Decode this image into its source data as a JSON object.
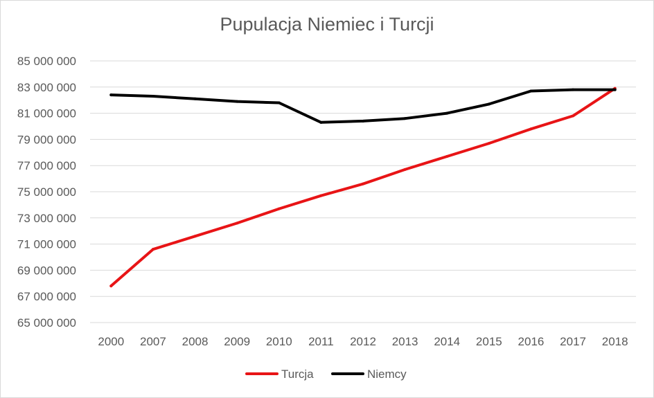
{
  "chart_data": {
    "type": "line",
    "title": "Pupulacja Niemiec i Turcji",
    "xlabel": "",
    "ylabel": "",
    "categories": [
      "2000",
      "2007",
      "2008",
      "2009",
      "2010",
      "2011",
      "2012",
      "2013",
      "2014",
      "2015",
      "2016",
      "2017",
      "2018"
    ],
    "ylim": [
      65000000,
      85000000
    ],
    "yticks": [
      65000000,
      67000000,
      69000000,
      71000000,
      73000000,
      75000000,
      77000000,
      79000000,
      81000000,
      83000000,
      85000000
    ],
    "ytick_labels": [
      "65 000 000",
      "67 000 000",
      "69 000 000",
      "71 000 000",
      "73 000 000",
      "75 000 000",
      "77 000 000",
      "79 000 000",
      "81 000 000",
      "83 000 000",
      "85 000 000"
    ],
    "grid": true,
    "legend_position": "bottom",
    "series": [
      {
        "name": "Turcja",
        "color": "#e81416",
        "values": [
          67800000,
          70600000,
          71600000,
          72600000,
          73700000,
          74700000,
          75600000,
          76700000,
          77700000,
          78700000,
          79800000,
          80800000,
          82900000
        ]
      },
      {
        "name": "Niemcy",
        "color": "#000000",
        "values": [
          82400000,
          82300000,
          82100000,
          81900000,
          81800000,
          80300000,
          80400000,
          80600000,
          81000000,
          81700000,
          82700000,
          82800000,
          82800000
        ]
      }
    ]
  }
}
